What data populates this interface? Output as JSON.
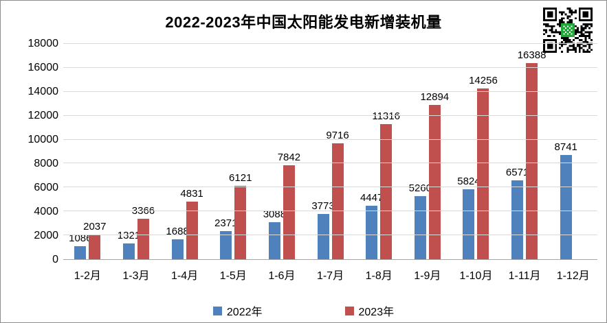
{
  "title": "2022-2023年中国太阳能发电新增装机量",
  "chart_data": {
    "type": "bar",
    "title": "2022-2023年中国太阳能发电新增装机量",
    "categories": [
      "1-2月",
      "1-3月",
      "1-4月",
      "1-5月",
      "1-6月",
      "1-7月",
      "1-8月",
      "1-9月",
      "1-10月",
      "1-11月",
      "1-12月"
    ],
    "series": [
      {
        "name": "2022年",
        "color": "#4f81bd",
        "values": [
          1086,
          1321,
          1688,
          2371,
          3088,
          3773,
          4447,
          5260,
          5824,
          6571,
          8741
        ]
      },
      {
        "name": "2023年",
        "color": "#c0504d",
        "values": [
          2037,
          3366,
          4831,
          6121,
          7842,
          9716,
          11316,
          12894,
          14256,
          16388,
          null
        ]
      }
    ],
    "ylim": [
      0,
      18000
    ],
    "yticks": [
      0,
      2000,
      4000,
      6000,
      8000,
      10000,
      12000,
      14000,
      16000,
      18000
    ],
    "xlabel": "",
    "ylabel": "",
    "grid": true,
    "data_labels": true,
    "legend_position": "bottom"
  },
  "legend": {
    "items": [
      {
        "label": "2022年",
        "color": "#4f81bd"
      },
      {
        "label": "2023年",
        "color": "#c0504d"
      }
    ]
  },
  "icons": {
    "qr_code": "qr-code"
  },
  "colors": {
    "background": "#ffffff",
    "grid": "#d9d9d9",
    "axis": "#a6a6a6",
    "text": "#000000",
    "series_2022": "#4f81bd",
    "series_2023": "#c0504d",
    "qr_logo_green": "#21a838"
  }
}
